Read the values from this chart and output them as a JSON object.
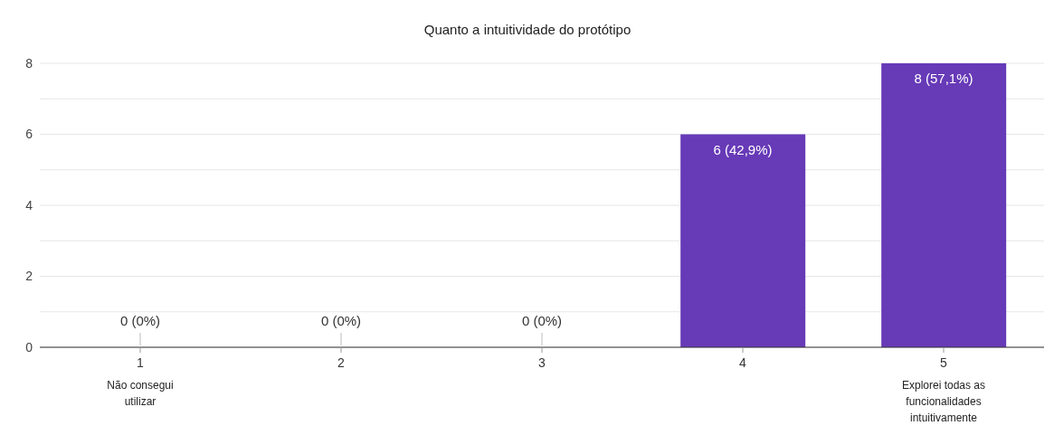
{
  "chart_data": {
    "type": "bar",
    "title": "Quanto a intuitividade do protótipo",
    "categories": [
      "1",
      "2",
      "3",
      "4",
      "5"
    ],
    "values": [
      0,
      0,
      0,
      6,
      8
    ],
    "value_labels": [
      "0 (0%)",
      "0 (0%)",
      "0 (0%)",
      "6 (42,9%)",
      "8 (57,1%)"
    ],
    "color": "#673ab7",
    "ylim": [
      0,
      8
    ],
    "yticks": [
      0,
      {
        "value": 1,
        "label": null
      },
      2,
      {
        "value": 3,
        "label": null
      },
      4,
      {
        "value": 5,
        "label": null
      },
      6,
      {
        "value": 7,
        "label": null
      },
      8
    ],
    "grid": "y",
    "annotations": [
      "Não consegui utilizar",
      "Explorei todas as funcionalidades intuitivamente"
    ]
  }
}
